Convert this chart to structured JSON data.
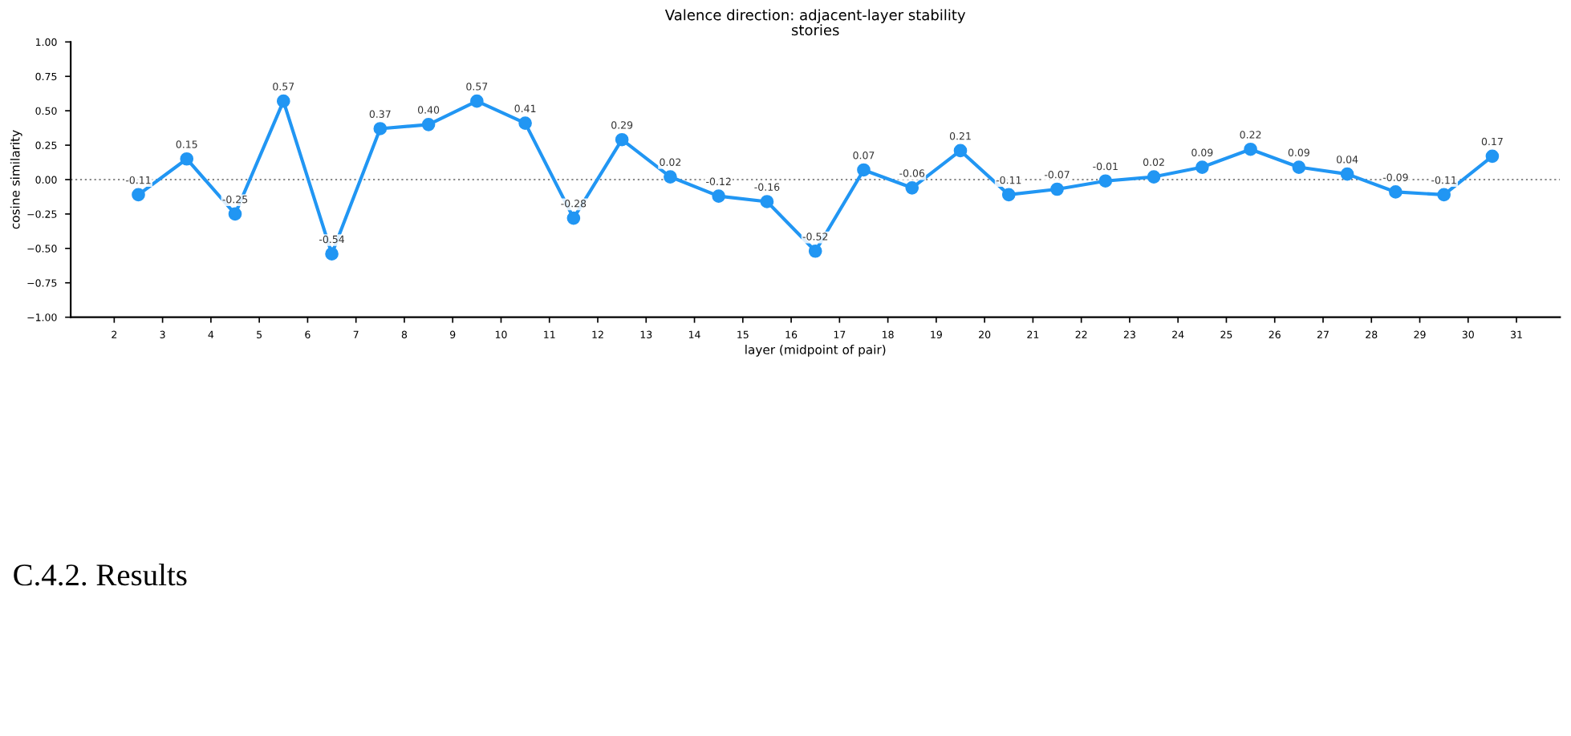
{
  "chart_data": {
    "type": "line",
    "title": "Valence direction: adjacent-layer stability",
    "subtitle": "stories",
    "xlabel": "layer (midpoint of pair)",
    "ylabel": "cosine similarity",
    "x": [
      2.5,
      3.5,
      4.5,
      5.5,
      6.5,
      7.5,
      8.5,
      9.5,
      10.5,
      11.5,
      12.5,
      13.5,
      14.5,
      15.5,
      16.5,
      17.5,
      18.5,
      19.5,
      20.5,
      21.5,
      22.5,
      23.5,
      24.5,
      25.5,
      26.5,
      27.5,
      28.5,
      29.5,
      30.5
    ],
    "series": [
      {
        "color": "#2196f3",
        "values": [
          -0.11,
          0.15,
          -0.25,
          0.57,
          -0.54,
          0.37,
          0.4,
          0.57,
          0.41,
          -0.28,
          0.29,
          0.02,
          -0.12,
          -0.16,
          -0.52,
          0.07,
          -0.06,
          0.21,
          -0.11,
          -0.07,
          -0.01,
          0.02,
          0.09,
          0.22,
          0.09,
          0.04,
          -0.09,
          -0.11,
          0.17
        ]
      }
    ],
    "value_labels": [
      "-0.11",
      "0.15",
      "-0.25",
      "0.57",
      "-0.54",
      "0.37",
      "0.40",
      "0.57",
      "0.41",
      "-0.28",
      "0.29",
      "0.02",
      "-0.12",
      "-0.16",
      "-0.52",
      "0.07",
      "-0.06",
      "0.21",
      "-0.11",
      "-0.07",
      "-0.01",
      "0.02",
      "0.09",
      "0.22",
      "0.09",
      "0.04",
      "-0.09",
      "-0.11",
      "0.17"
    ],
    "marker": "circle",
    "line_style": "solid",
    "grid": false,
    "legend": false,
    "xlim": [
      1.1,
      31.9
    ],
    "xticks": [
      2,
      3,
      4,
      5,
      6,
      7,
      8,
      9,
      10,
      11,
      12,
      13,
      14,
      15,
      16,
      17,
      18,
      19,
      20,
      21,
      22,
      23,
      24,
      25,
      26,
      27,
      28,
      29,
      30,
      31
    ],
    "ylim": [
      -1,
      1
    ],
    "yticks": [
      {
        "value": -1,
        "label": "−1.00"
      },
      {
        "value": -0.75,
        "label": "−0.75"
      },
      {
        "value": -0.5,
        "label": "−0.50"
      },
      {
        "value": -0.25,
        "label": "−0.25"
      },
      {
        "value": 0,
        "label": "0.00"
      },
      {
        "value": 0.25,
        "label": "0.25"
      },
      {
        "value": 0.5,
        "label": "0.50"
      },
      {
        "value": 0.75,
        "label": "0.75"
      },
      {
        "value": 1,
        "label": "1.00"
      }
    ],
    "ref_lines": [
      {
        "axis": "y",
        "value": 0,
        "color": "#888888",
        "line_style": "dotted"
      }
    ],
    "annotations": [
      "C.4.2. Results"
    ]
  }
}
